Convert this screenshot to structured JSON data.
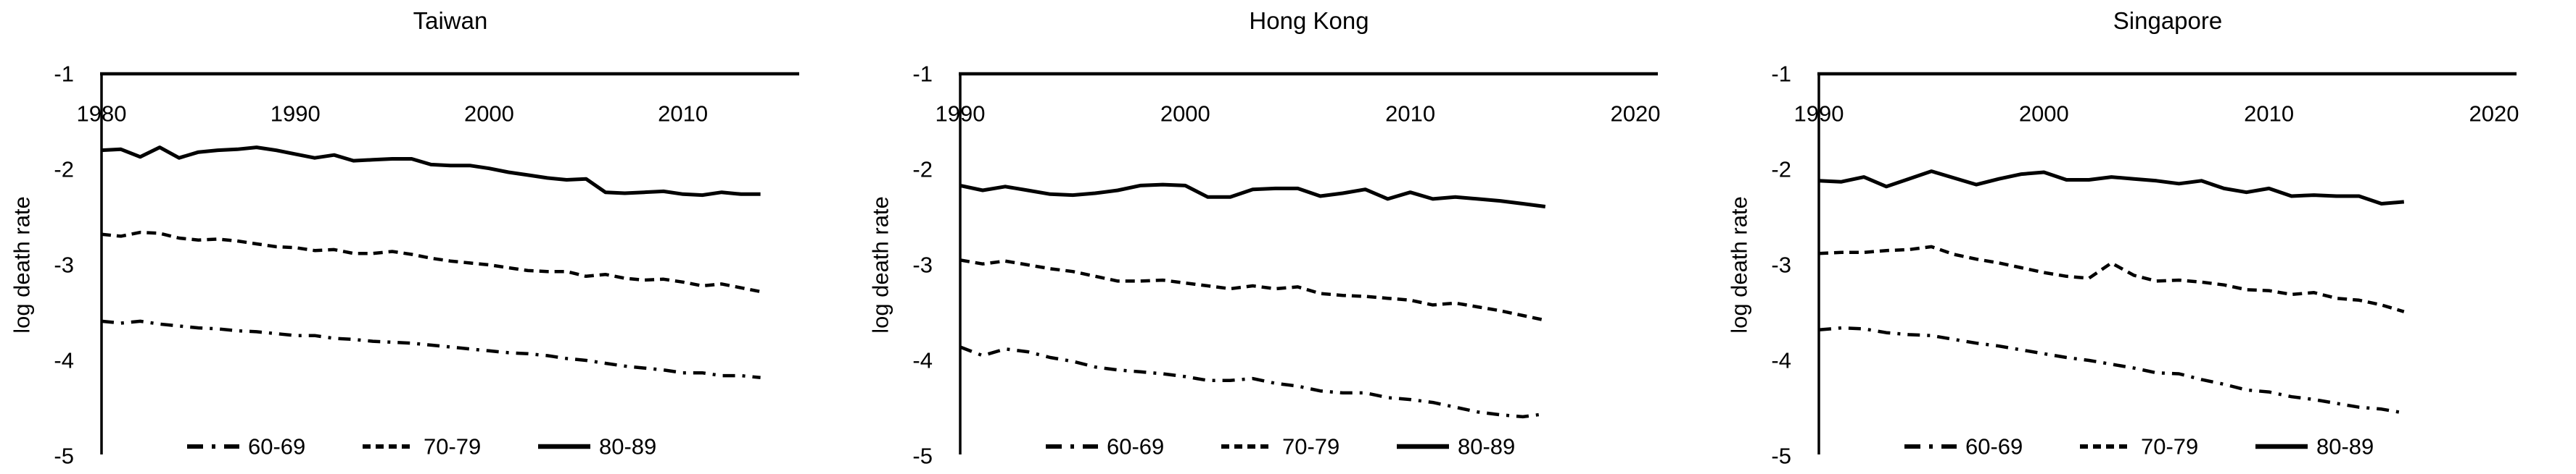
{
  "page": {
    "background_color": "#ffffff",
    "line_color": "#000000"
  },
  "chart_data": [
    {
      "type": "line",
      "title": "Taiwan",
      "xlabel": "",
      "ylabel": "log death rate",
      "x_min": 1980,
      "x_axis_max": 2016,
      "x_ticks": [
        1980,
        1990,
        2000,
        2010
      ],
      "y_ticks": [
        -1,
        -2,
        -3,
        -4,
        -5
      ],
      "ylim": [
        -5,
        -1
      ],
      "grid": false,
      "legend_position": "bottom",
      "years": [
        1980,
        1981,
        1982,
        1983,
        1984,
        1985,
        1986,
        1987,
        1988,
        1989,
        1990,
        1991,
        1992,
        1993,
        1994,
        1995,
        1996,
        1997,
        1998,
        1999,
        2000,
        2001,
        2002,
        2003,
        2004,
        2005,
        2006,
        2007,
        2008,
        2009,
        2010,
        2011,
        2012,
        2013,
        2014
      ],
      "series": [
        {
          "name": "60-69",
          "style": "dashdot",
          "values": [
            -3.59,
            -3.61,
            -3.59,
            -3.62,
            -3.64,
            -3.66,
            -3.67,
            -3.69,
            -3.7,
            -3.72,
            -3.74,
            -3.74,
            -3.77,
            -3.78,
            -3.8,
            -3.81,
            -3.82,
            -3.84,
            -3.86,
            -3.88,
            -3.9,
            -3.92,
            -3.93,
            -3.95,
            -3.98,
            -4.0,
            -4.03,
            -4.06,
            -4.08,
            -4.1,
            -4.13,
            -4.13,
            -4.16,
            -4.16,
            -4.18
          ]
        },
        {
          "name": "70-79",
          "style": "dashed",
          "values": [
            -2.68,
            -2.7,
            -2.66,
            -2.67,
            -2.72,
            -2.74,
            -2.73,
            -2.75,
            -2.78,
            -2.81,
            -2.82,
            -2.85,
            -2.84,
            -2.88,
            -2.88,
            -2.86,
            -2.89,
            -2.93,
            -2.96,
            -2.98,
            -3.0,
            -3.03,
            -3.06,
            -3.07,
            -3.07,
            -3.12,
            -3.1,
            -3.14,
            -3.16,
            -3.15,
            -3.18,
            -3.22,
            -3.2,
            -3.24,
            -3.28
          ]
        },
        {
          "name": "80-89",
          "style": "solid",
          "values": [
            -1.8,
            -1.79,
            -1.87,
            -1.77,
            -1.88,
            -1.82,
            -1.8,
            -1.79,
            -1.77,
            -1.8,
            -1.84,
            -1.88,
            -1.85,
            -1.91,
            -1.9,
            -1.89,
            -1.89,
            -1.95,
            -1.96,
            -1.96,
            -1.99,
            -2.03,
            -2.06,
            -2.09,
            -2.11,
            -2.1,
            -2.24,
            -2.25,
            -2.24,
            -2.23,
            -2.26,
            -2.27,
            -2.24,
            -2.26,
            -2.26
          ]
        }
      ]
    },
    {
      "type": "line",
      "title": "Hong Kong",
      "xlabel": "",
      "ylabel": "log death rate",
      "x_min": 1990,
      "x_axis_max": 2021,
      "x_ticks": [
        1990,
        2000,
        2010,
        2020
      ],
      "y_ticks": [
        -1,
        -2,
        -3,
        -4,
        -5
      ],
      "ylim": [
        -5,
        -1
      ],
      "grid": false,
      "legend_position": "bottom",
      "years": [
        1990,
        1991,
        1992,
        1993,
        1994,
        1995,
        1996,
        1997,
        1998,
        1999,
        2000,
        2001,
        2002,
        2003,
        2004,
        2005,
        2006,
        2007,
        2008,
        2009,
        2010,
        2011,
        2012,
        2013,
        2014,
        2015,
        2016
      ],
      "series": [
        {
          "name": "60-69",
          "style": "dashdot",
          "values": [
            -3.86,
            -3.95,
            -3.88,
            -3.91,
            -3.97,
            -4.01,
            -4.07,
            -4.1,
            -4.12,
            -4.14,
            -4.17,
            -4.21,
            -4.21,
            -4.19,
            -4.24,
            -4.27,
            -4.32,
            -4.34,
            -4.34,
            -4.39,
            -4.41,
            -4.44,
            -4.49,
            -4.54,
            -4.57,
            -4.59,
            -4.56
          ]
        },
        {
          "name": "70-79",
          "style": "dashed",
          "values": [
            -2.95,
            -2.99,
            -2.96,
            -3.0,
            -3.04,
            -3.07,
            -3.12,
            -3.17,
            -3.17,
            -3.16,
            -3.19,
            -3.22,
            -3.25,
            -3.22,
            -3.25,
            -3.23,
            -3.3,
            -3.32,
            -3.33,
            -3.35,
            -3.37,
            -3.42,
            -3.4,
            -3.44,
            -3.48,
            -3.53,
            -3.58
          ]
        },
        {
          "name": "80-89",
          "style": "solid",
          "values": [
            -2.17,
            -2.22,
            -2.18,
            -2.22,
            -2.26,
            -2.27,
            -2.25,
            -2.22,
            -2.17,
            -2.16,
            -2.17,
            -2.29,
            -2.29,
            -2.21,
            -2.2,
            -2.2,
            -2.28,
            -2.25,
            -2.21,
            -2.31,
            -2.24,
            -2.31,
            -2.29,
            -2.31,
            -2.33,
            -2.36,
            -2.39
          ]
        }
      ]
    },
    {
      "type": "line",
      "title": "Singapore",
      "xlabel": "",
      "ylabel": "log death rate",
      "x_min": 1990,
      "x_axis_max": 2021,
      "x_ticks": [
        1990,
        2000,
        2010,
        2020
      ],
      "y_ticks": [
        -1,
        -2,
        -3,
        -4,
        -5
      ],
      "ylim": [
        -5,
        -1
      ],
      "grid": false,
      "legend_position": "bottom",
      "years": [
        1990,
        1991,
        1992,
        1993,
        1994,
        1995,
        1996,
        1997,
        1998,
        1999,
        2000,
        2001,
        2002,
        2003,
        2004,
        2005,
        2006,
        2007,
        2008,
        2009,
        2010,
        2011,
        2012,
        2013,
        2014,
        2015,
        2016
      ],
      "series": [
        {
          "name": "60-69",
          "style": "dashdot",
          "values": [
            -3.68,
            -3.66,
            -3.67,
            -3.71,
            -3.73,
            -3.74,
            -3.78,
            -3.82,
            -3.85,
            -3.89,
            -3.93,
            -3.97,
            -4.0,
            -4.04,
            -4.08,
            -4.13,
            -4.14,
            -4.2,
            -4.25,
            -4.31,
            -4.33,
            -4.38,
            -4.41,
            -4.45,
            -4.49,
            -4.51,
            -4.55
          ]
        },
        {
          "name": "70-79",
          "style": "dashed",
          "values": [
            -2.88,
            -2.87,
            -2.87,
            -2.85,
            -2.84,
            -2.81,
            -2.89,
            -2.94,
            -2.98,
            -3.03,
            -3.08,
            -3.12,
            -3.14,
            -2.98,
            -3.11,
            -3.17,
            -3.16,
            -3.18,
            -3.21,
            -3.26,
            -3.27,
            -3.31,
            -3.29,
            -3.35,
            -3.37,
            -3.42,
            -3.49
          ]
        },
        {
          "name": "80-89",
          "style": "solid",
          "values": [
            -2.12,
            -2.13,
            -2.08,
            -2.18,
            -2.1,
            -2.02,
            -2.09,
            -2.16,
            -2.1,
            -2.05,
            -2.03,
            -2.11,
            -2.11,
            -2.08,
            -2.1,
            -2.12,
            -2.15,
            -2.12,
            -2.2,
            -2.24,
            -2.2,
            -2.28,
            -2.27,
            -2.28,
            -2.28,
            -2.36,
            -2.34
          ]
        }
      ]
    }
  ]
}
